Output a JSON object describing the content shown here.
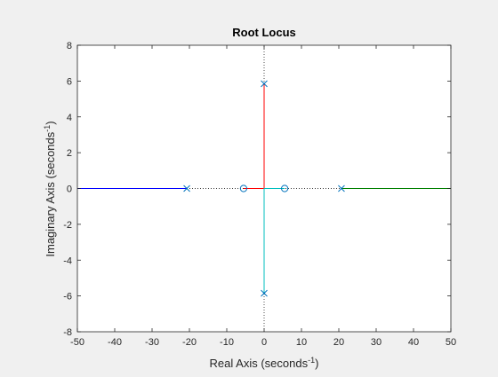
{
  "chart_data": {
    "type": "scatter",
    "title": "Root Locus",
    "xlabel": {
      "text": "Real Axis (seconds",
      "sup": "-1",
      "close": ")"
    },
    "ylabel": {
      "text": "Imaginary Axis (seconds",
      "sup": "-1",
      "close": ")"
    },
    "xlim": [
      -50,
      50
    ],
    "ylim": [
      -8,
      8
    ],
    "xticks": [
      -50,
      -40,
      -30,
      -20,
      -10,
      0,
      10,
      20,
      30,
      40,
      50
    ],
    "yticks": [
      -8,
      -6,
      -4,
      -2,
      0,
      2,
      4,
      6,
      8
    ],
    "xtick_labels": [
      "-50",
      "-40",
      "-30",
      "-20",
      "-10",
      "0",
      "10",
      "20",
      "30",
      "40",
      "50"
    ],
    "ytick_labels": [
      "-8",
      "-6",
      "-4",
      "-2",
      "0",
      "2",
      "4",
      "6",
      "8"
    ],
    "grid": false,
    "poles": [
      {
        "x": -20.7,
        "y": 0
      },
      {
        "x": 20.7,
        "y": 0
      },
      {
        "x": 0,
        "y": 5.85
      },
      {
        "x": 0,
        "y": -5.85
      }
    ],
    "zeros": [
      {
        "x": -5.5,
        "y": 0
      },
      {
        "x": 5.5,
        "y": 0
      }
    ],
    "series": [
      {
        "color": "#0000ff",
        "points": [
          [
            -20.7,
            0
          ],
          [
            -50,
            0
          ]
        ]
      },
      {
        "color": "#008000",
        "points": [
          [
            20.7,
            0
          ],
          [
            50,
            0
          ]
        ]
      },
      {
        "color": "#ff0000",
        "points": [
          [
            0,
            5.85
          ],
          [
            0,
            0
          ],
          [
            -5.5,
            0
          ]
        ]
      },
      {
        "color": "#00bfbf",
        "points": [
          [
            0,
            -5.85
          ],
          [
            0,
            0
          ],
          [
            5.5,
            0
          ]
        ]
      }
    ],
    "marker_color": "#0072bd",
    "dotted_axis_color": "#000000"
  }
}
